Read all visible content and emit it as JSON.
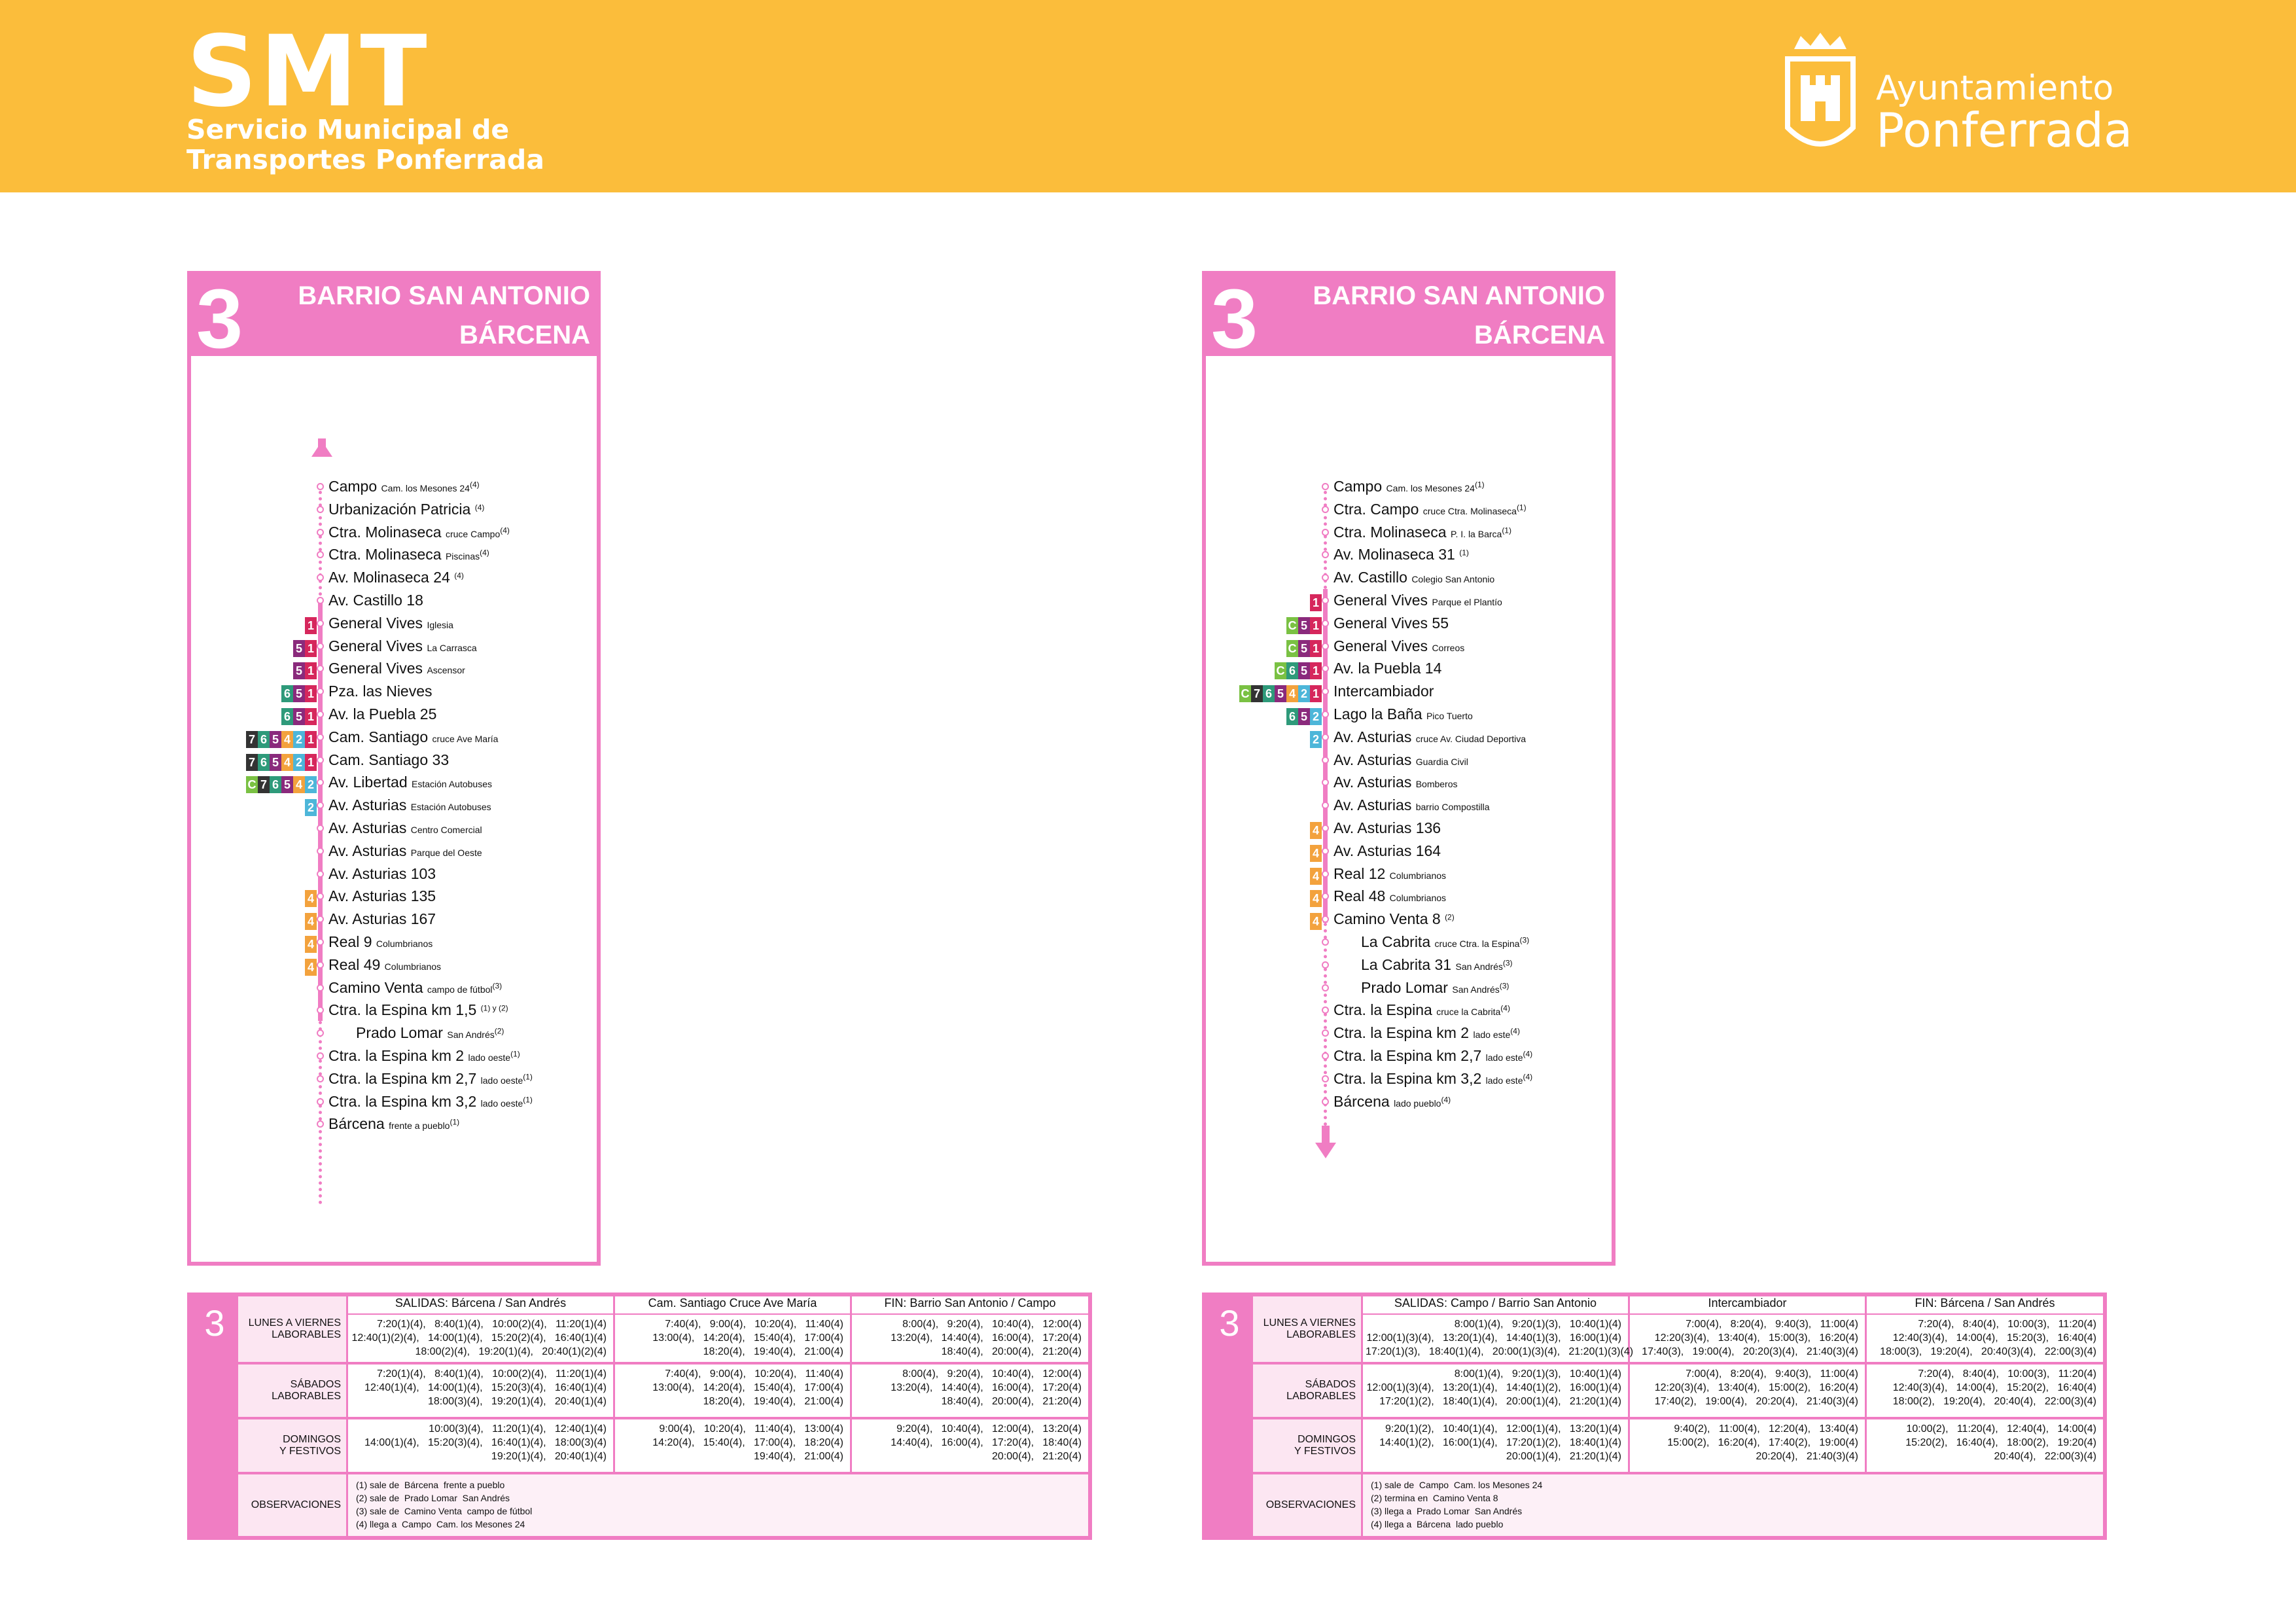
{
  "header": {
    "logo_big": "SMT",
    "logo_sub1": "Servicio Municipal de",
    "logo_sub2": "Transportes Ponferrada",
    "ayto1": "Ayuntamiento",
    "ayto2": "Ponferrada"
  },
  "left": {
    "num": "3",
    "t1": "BARRIO SAN ANTONIO",
    "t2": "BÁRCENA",
    "stops": [
      {
        "n": "Campo",
        "s": "Cam. los Mesones 24",
        "sup": "(4)"
      },
      {
        "n": "Urbanización Patricia",
        "s": "",
        "sup": "(4)"
      },
      {
        "n": "Ctra. Molinaseca",
        "s": "cruce Campo",
        "sup": "(4)"
      },
      {
        "n": "Ctra. Molinaseca",
        "s": "Piscinas",
        "sup": "(4)"
      },
      {
        "n": "Av. Molinaseca 24",
        "s": "",
        "sup": "(4)"
      },
      {
        "n": "Av. Castillo 18",
        "s": "",
        "sup": ""
      },
      {
        "n": "General Vives",
        "s": "Iglesia",
        "sup": ""
      },
      {
        "n": "General Vives",
        "s": "La Carrasca",
        "sup": ""
      },
      {
        "n": "General Vives",
        "s": "Ascensor",
        "sup": ""
      },
      {
        "n": "Pza. las Nieves",
        "s": "",
        "sup": ""
      },
      {
        "n": "Av. la Puebla 25",
        "s": "",
        "sup": ""
      },
      {
        "n": "Cam. Santiago",
        "s": "cruce Ave María",
        "sup": ""
      },
      {
        "n": "Cam. Santiago 33",
        "s": "",
        "sup": ""
      },
      {
        "n": "Av. Libertad",
        "s": "Estación Autobuses",
        "sup": ""
      },
      {
        "n": "Av. Asturias",
        "s": "Estación Autobuses",
        "sup": ""
      },
      {
        "n": "Av. Asturias",
        "s": "Centro Comercial",
        "sup": ""
      },
      {
        "n": "Av. Asturias",
        "s": "Parque del Oeste",
        "sup": ""
      },
      {
        "n": "Av. Asturias 103",
        "s": "",
        "sup": ""
      },
      {
        "n": "Av. Asturias 135",
        "s": "",
        "sup": ""
      },
      {
        "n": "Av. Asturias 167",
        "s": "",
        "sup": ""
      },
      {
        "n": "Real 9",
        "s": "Columbrianos",
        "sup": ""
      },
      {
        "n": "Real 49",
        "s": "Columbrianos",
        "sup": ""
      },
      {
        "n": "Camino Venta",
        "s": "campo de fútbol",
        "sup": "(3)"
      },
      {
        "n": "Ctra. la Espina km 1,5",
        "s": "",
        "sup": "(1) y (2)"
      },
      {
        "n": "Prado Lomar",
        "s": "San Andrés",
        "sup": "(2)"
      },
      {
        "n": "Ctra. la Espina km 2",
        "s": "lado oeste",
        "sup": "(1)"
      },
      {
        "n": "Ctra. la Espina km 2,7",
        "s": "lado oeste",
        "sup": "(1)"
      },
      {
        "n": "Ctra. la Espina km 3,2",
        "s": "lado oeste",
        "sup": "(1)"
      },
      {
        "n": "Bárcena",
        "s": "frente a pueblo",
        "sup": "(1)"
      }
    ]
  },
  "right": {
    "num": "3",
    "t1": "BARRIO SAN ANTONIO",
    "t2": "BÁRCENA",
    "stops": [
      {
        "n": "Campo",
        "s": "Cam. los Mesones 24",
        "sup": "(1)"
      },
      {
        "n": "Ctra. Campo",
        "s": "cruce Ctra. Molinaseca",
        "sup": "(1)"
      },
      {
        "n": "Ctra. Molinaseca",
        "s": "P. I. la Barca",
        "sup": "(1)"
      },
      {
        "n": "Av. Molinaseca 31",
        "s": "",
        "sup": "(1)"
      },
      {
        "n": "Av. Castillo",
        "s": "Colegio San Antonio",
        "sup": ""
      },
      {
        "n": "General Vives",
        "s": "Parque el Plantío",
        "sup": ""
      },
      {
        "n": "General Vives 55",
        "s": "",
        "sup": ""
      },
      {
        "n": "General Vives",
        "s": "Correos",
        "sup": ""
      },
      {
        "n": "Av. la Puebla 14",
        "s": "",
        "sup": ""
      },
      {
        "n": "Intercambiador",
        "s": "",
        "sup": ""
      },
      {
        "n": "Lago la Baña",
        "s": "Pico Tuerto",
        "sup": ""
      },
      {
        "n": "Av. Asturias",
        "s": "cruce Av. Ciudad Deportiva",
        "sup": ""
      },
      {
        "n": "Av. Asturias",
        "s": "Guardia Civil",
        "sup": ""
      },
      {
        "n": "Av. Asturias",
        "s": "Bomberos",
        "sup": ""
      },
      {
        "n": "Av. Asturias",
        "s": "barrio Compostilla",
        "sup": ""
      },
      {
        "n": "Av. Asturias 136",
        "s": "",
        "sup": ""
      },
      {
        "n": "Av. Asturias 164",
        "s": "",
        "sup": ""
      },
      {
        "n": "Real 12",
        "s": "Columbrianos",
        "sup": ""
      },
      {
        "n": "Real 48",
        "s": "Columbrianos",
        "sup": ""
      },
      {
        "n": "Camino Venta 8",
        "s": "",
        "sup": "(2)"
      },
      {
        "n": "La Cabrita",
        "s": "cruce Ctra. la Espina",
        "sup": "(3)"
      },
      {
        "n": "La Cabrita 31",
        "s": "San Andrés",
        "sup": "(3)"
      },
      {
        "n": "Prado Lomar",
        "s": "San Andrés",
        "sup": "(3)"
      },
      {
        "n": "Ctra. la Espina",
        "s": "cruce la Cabrita",
        "sup": "(4)"
      },
      {
        "n": "Ctra. la Espina km 2",
        "s": "lado este",
        "sup": "(4)"
      },
      {
        "n": "Ctra. la Espina km 2,7",
        "s": "lado este",
        "sup": "(4)"
      },
      {
        "n": "Ctra. la Espina km 3,2",
        "s": "lado este",
        "sup": "(4)"
      },
      {
        "n": "Bárcena",
        "s": "lado pueblo",
        "sup": "(4)"
      }
    ]
  },
  "ltable": {
    "num": "3",
    "h1": "SALIDAS: Bárcena / San Andrés",
    "h2": "Cam. Santiago Cruce Ave María",
    "h3": "FIN: Barrio San Antonio / Campo",
    "lab1": "LUNES A VIERNES\nLABORABLES",
    "lab2": "SÁBADOS\nLABORABLES",
    "lab3": "DOMINGOS\nY FESTIVOS",
    "lab4": "OBSERVACIONES",
    "r1c1": "7:20(1)(4),   8:40(1)(4),   10:00(2)(4),   11:20(1)(4)\n12:40(1)(2)(4),   14:00(1)(4),   15:20(2)(4),   16:40(1)(4)\n18:00(2)(4),   19:20(1)(4),   20:40(1)(2)(4)",
    "r1c2": "7:40(4),   9:00(4),   10:20(4),   11:40(4)\n13:00(4),   14:20(4),   15:40(4),   17:00(4)\n18:20(4),   19:40(4),   21:00(4)",
    "r1c3": "8:00(4),   9:20(4),   10:40(4),   12:00(4)\n13:20(4),   14:40(4),   16:00(4),   17:20(4)\n18:40(4),   20:00(4),   21:20(4)",
    "r2c1": "7:20(1)(4),   8:40(1)(4),   10:00(2)(4),   11:20(1)(4)\n12:40(1)(4),   14:00(1)(4),   15:20(3)(4),   16:40(1)(4)\n18:00(3)(4),   19:20(1)(4),   20:40(1)(4)",
    "r2c2": "7:40(4),   9:00(4),   10:20(4),   11:40(4)\n13:00(4),   14:20(4),   15:40(4),   17:00(4)\n18:20(4),   19:40(4),   21:00(4)",
    "r2c3": "8:00(4),   9:20(4),   10:40(4),   12:00(4)\n13:20(4),   14:40(4),   16:00(4),   17:20(4)\n18:40(4),   20:00(4),   21:20(4)",
    "r3c1": "10:00(3)(4),   11:20(1)(4),   12:40(1)(4)\n14:00(1)(4),   15:20(3)(4),   16:40(1)(4),   18:00(3)(4)\n19:20(1)(4),   20:40(1)(4)",
    "r3c2": "9:00(4),   10:20(4),   11:40(4),   13:00(4)\n14:20(4),   15:40(4),   17:00(4),   18:20(4)\n19:40(4),   21:00(4)",
    "r3c3": "9:20(4),   10:40(4),   12:00(4),   13:20(4)\n14:40(4),   16:00(4),   17:20(4),   18:40(4)\n20:00(4),   21:20(4)",
    "obs": "(1) sale de  Bárcena  frente a pueblo\n(2) sale de  Prado Lomar  San Andrés\n(3) sale de  Camino Venta  campo de fútbol\n(4) llega a  Campo  Cam. los Mesones 24"
  },
  "rtable": {
    "num": "3",
    "h1": "SALIDAS: Campo / Barrio San Antonio",
    "h2": "Intercambiador",
    "h3": "FIN: Bárcena / San Andrés",
    "lab1": "LUNES A VIERNES\nLABORABLES",
    "lab2": "SÁBADOS\nLABORABLES",
    "lab3": "DOMINGOS\nY FESTIVOS",
    "lab4": "OBSERVACIONES",
    "r1c1": "8:00(1)(4),   9:20(1)(3),   10:40(1)(4)\n12:00(1)(3)(4),   13:20(1)(4),   14:40(1)(3),   16:00(1)(4)\n17:20(1)(3),   18:40(1)(4),   20:00(1)(3)(4),   21:20(1)(3)(4)",
    "r1c2": "7:00(4),   8:20(4),   9:40(3),   11:00(4)\n12:20(3)(4),   13:40(4),   15:00(3),   16:20(4)\n17:40(3),   19:00(4),   20:20(3)(4),   21:40(3)(4)",
    "r1c3": "7:20(4),   8:40(4),   10:00(3),   11:20(4)\n12:40(3)(4),   14:00(4),   15:20(3),   16:40(4)\n18:00(3),   19:20(4),   20:40(3)(4),   22:00(3)(4)",
    "r2c1": "8:00(1)(4),   9:20(1)(3),   10:40(1)(4)\n12:00(1)(3)(4),   13:20(1)(4),   14:40(1)(2),   16:00(1)(4)\n17:20(1)(2),   18:40(1)(4),   20:00(1)(4),   21:20(1)(4)",
    "r2c2": "7:00(4),   8:20(4),   9:40(3),   11:00(4)\n12:20(3)(4),   13:40(4),   15:00(2),   16:20(4)\n17:40(2),   19:00(4),   20:20(4),   21:40(3)(4)",
    "r2c3": "7:20(4),   8:40(4),   10:00(3),   11:20(4)\n12:40(3)(4),   14:00(4),   15:20(2),   16:40(4)\n18:00(2),   19:20(4),   20:40(4),   22:00(3)(4)",
    "r3c1": "9:20(1)(2),   10:40(1)(4),   12:00(1)(4),   13:20(1)(4)\n14:40(1)(2),   16:00(1)(4),   17:20(1)(2),   18:40(1)(4)\n20:00(1)(4),   21:20(1)(4)",
    "r3c2": "9:40(2),   11:00(4),   12:20(4),   13:40(4)\n15:00(2),   16:20(4),   17:40(2),   19:00(4)\n20:20(4),   21:40(3)(4)",
    "r3c3": "10:00(2),   11:20(4),   12:40(4),   14:00(4)\n15:20(2),   16:40(4),   18:00(2),   19:20(4)\n20:40(4),   22:00(3)(4)",
    "obs": "(1) sale de  Campo  Cam. los Mesones 24\n(2) termina en  Camino Venta 8\n(3) llega a  Prado Lomar  San Andrés\n(4) llega a  Bárcena  lado pueblo"
  }
}
